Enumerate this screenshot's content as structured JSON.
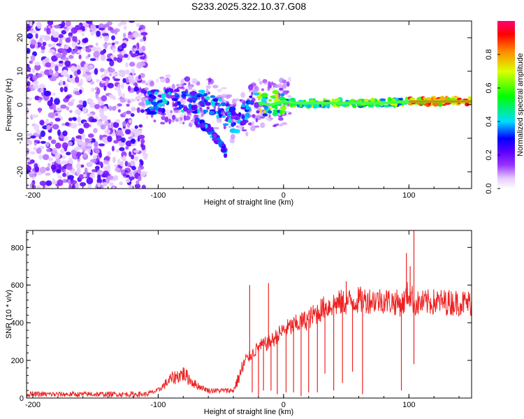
{
  "title": "S233.2025.322.10.37.G08",
  "chart_data": [
    {
      "type": "heatmap",
      "xlabel": "Height of straight line (km)",
      "ylabel": "Frequency (Hz)",
      "xlim": [
        -205,
        150
      ],
      "ylim": [
        -25,
        25
      ],
      "xticks": [
        -200,
        -100,
        0,
        100
      ],
      "yticks": [
        -20,
        -10,
        0,
        10,
        20
      ],
      "colorbar": {
        "label": "Normalized spectral amplitude",
        "range": [
          0,
          1
        ],
        "ticks": [
          "0.0",
          "0.2",
          "0.4",
          "0.6",
          "0.8"
        ],
        "tick_values": [
          0.0,
          0.2,
          0.4,
          0.6,
          0.8
        ]
      },
      "noise_region_x": [
        -205,
        -110
      ],
      "signal_track": [
        {
          "x": -110,
          "f": 0.0
        },
        {
          "x": -100,
          "f": 1.0
        },
        {
          "x": -90,
          "f": 2.0
        },
        {
          "x": -80,
          "f": 1.5
        },
        {
          "x": -70,
          "f": 0.0
        },
        {
          "x": -60,
          "f": 1.5
        },
        {
          "x": -50,
          "f": -1.0
        },
        {
          "x": -40,
          "f": -5.0
        },
        {
          "x": -35,
          "f": -4.5
        },
        {
          "x": -30,
          "f": -2.0
        },
        {
          "x": -20,
          "f": 0.5
        },
        {
          "x": -10,
          "f": 0.0
        },
        {
          "x": 0,
          "f": 1.0
        },
        {
          "x": 10,
          "f": 0.5
        },
        {
          "x": 20,
          "f": 0.5
        },
        {
          "x": 40,
          "f": 0.5
        },
        {
          "x": 60,
          "f": 0.5
        },
        {
          "x": 80,
          "f": 0.5
        },
        {
          "x": 100,
          "f": 1.0
        },
        {
          "x": 150,
          "f": 1.0
        }
      ],
      "branch_track": [
        {
          "x": -70,
          "f": -5.0
        },
        {
          "x": -60,
          "f": -7.0
        },
        {
          "x": -50,
          "f": -12.0
        },
        {
          "x": -45,
          "f": -15.0
        }
      ]
    },
    {
      "type": "line",
      "xlabel": "Height of straight line (km)",
      "ylabel": "SNR (10 * v/v)",
      "xlim": [
        -205,
        150
      ],
      "ylim": [
        0,
        890
      ],
      "xticks": [
        -200,
        -100,
        0,
        100
      ],
      "yticks": [
        0,
        200,
        400,
        600,
        800
      ],
      "color": "#ee2222",
      "envelope": [
        {
          "x": -205,
          "y": 20
        },
        {
          "x": -110,
          "y": 20
        },
        {
          "x": -100,
          "y": 40
        },
        {
          "x": -90,
          "y": 100
        },
        {
          "x": -80,
          "y": 130
        },
        {
          "x": -70,
          "y": 70
        },
        {
          "x": -60,
          "y": 40
        },
        {
          "x": -40,
          "y": 40
        },
        {
          "x": -30,
          "y": 200
        },
        {
          "x": -20,
          "y": 270
        },
        {
          "x": -10,
          "y": 300
        },
        {
          "x": 0,
          "y": 360
        },
        {
          "x": 10,
          "y": 390
        },
        {
          "x": 20,
          "y": 420
        },
        {
          "x": 30,
          "y": 470
        },
        {
          "x": 40,
          "y": 500
        },
        {
          "x": 60,
          "y": 520
        },
        {
          "x": 80,
          "y": 520
        },
        {
          "x": 95,
          "y": 500
        },
        {
          "x": 100,
          "y": 560
        },
        {
          "x": 105,
          "y": 500
        },
        {
          "x": 120,
          "y": 510
        },
        {
          "x": 150,
          "y": 505
        }
      ],
      "spikes_up": [
        {
          "x": -12,
          "y": 610
        },
        {
          "x": -27,
          "y": 600
        },
        {
          "x": 50,
          "y": 620
        },
        {
          "x": 98,
          "y": 770
        },
        {
          "x": 104,
          "y": 890
        },
        {
          "x": 101,
          "y": 700
        }
      ],
      "dropouts": [
        {
          "x": -25,
          "y": 30
        },
        {
          "x": -20,
          "y": 10
        },
        {
          "x": -16,
          "y": 40
        },
        {
          "x": -10,
          "y": 40
        },
        {
          "x": -5,
          "y": 20
        },
        {
          "x": 2,
          "y": 30
        },
        {
          "x": 8,
          "y": 30
        },
        {
          "x": 14,
          "y": 10
        },
        {
          "x": 20,
          "y": 30
        },
        {
          "x": 27,
          "y": 30
        },
        {
          "x": 33,
          "y": 130
        },
        {
          "x": 40,
          "y": 40
        },
        {
          "x": 47,
          "y": 80
        },
        {
          "x": 55,
          "y": 140
        },
        {
          "x": 63,
          "y": 20
        },
        {
          "x": 94,
          "y": 40
        },
        {
          "x": 104,
          "y": 180
        }
      ]
    }
  ]
}
